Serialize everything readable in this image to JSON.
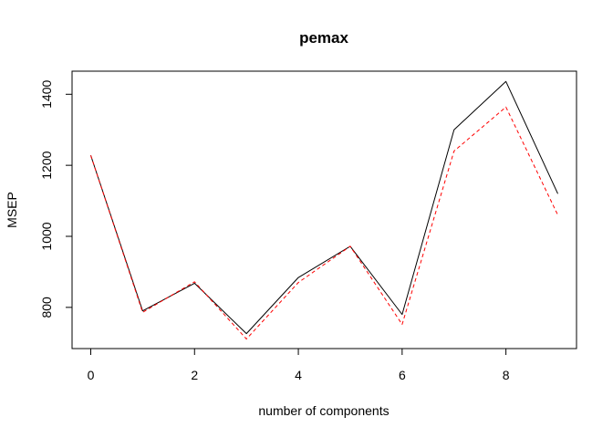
{
  "chart_data": {
    "type": "line",
    "title": "pemax",
    "xlabel": "number of components",
    "ylabel": "MSEP",
    "x": [
      0,
      1,
      2,
      3,
      4,
      5,
      6,
      7,
      8,
      9
    ],
    "xlim": [
      -0.36,
      9.36
    ],
    "ylim": [
      684,
      1465
    ],
    "x_ticks": [
      "0",
      "2",
      "4",
      "6",
      "8"
    ],
    "y_ticks": [
      "800",
      "1000",
      "1200",
      "1400"
    ],
    "grid": false,
    "legend": "none",
    "series": [
      {
        "values": [
          1228,
          790,
          868,
          726,
          884,
          972,
          780,
          1300,
          1436,
          1120
        ],
        "color": "#000000",
        "dash": "solid"
      },
      {
        "values": [
          1228,
          786,
          872,
          711,
          870,
          972,
          752,
          1240,
          1364,
          1060
        ],
        "color": "#ff0000",
        "dash": "dashed"
      }
    ]
  }
}
